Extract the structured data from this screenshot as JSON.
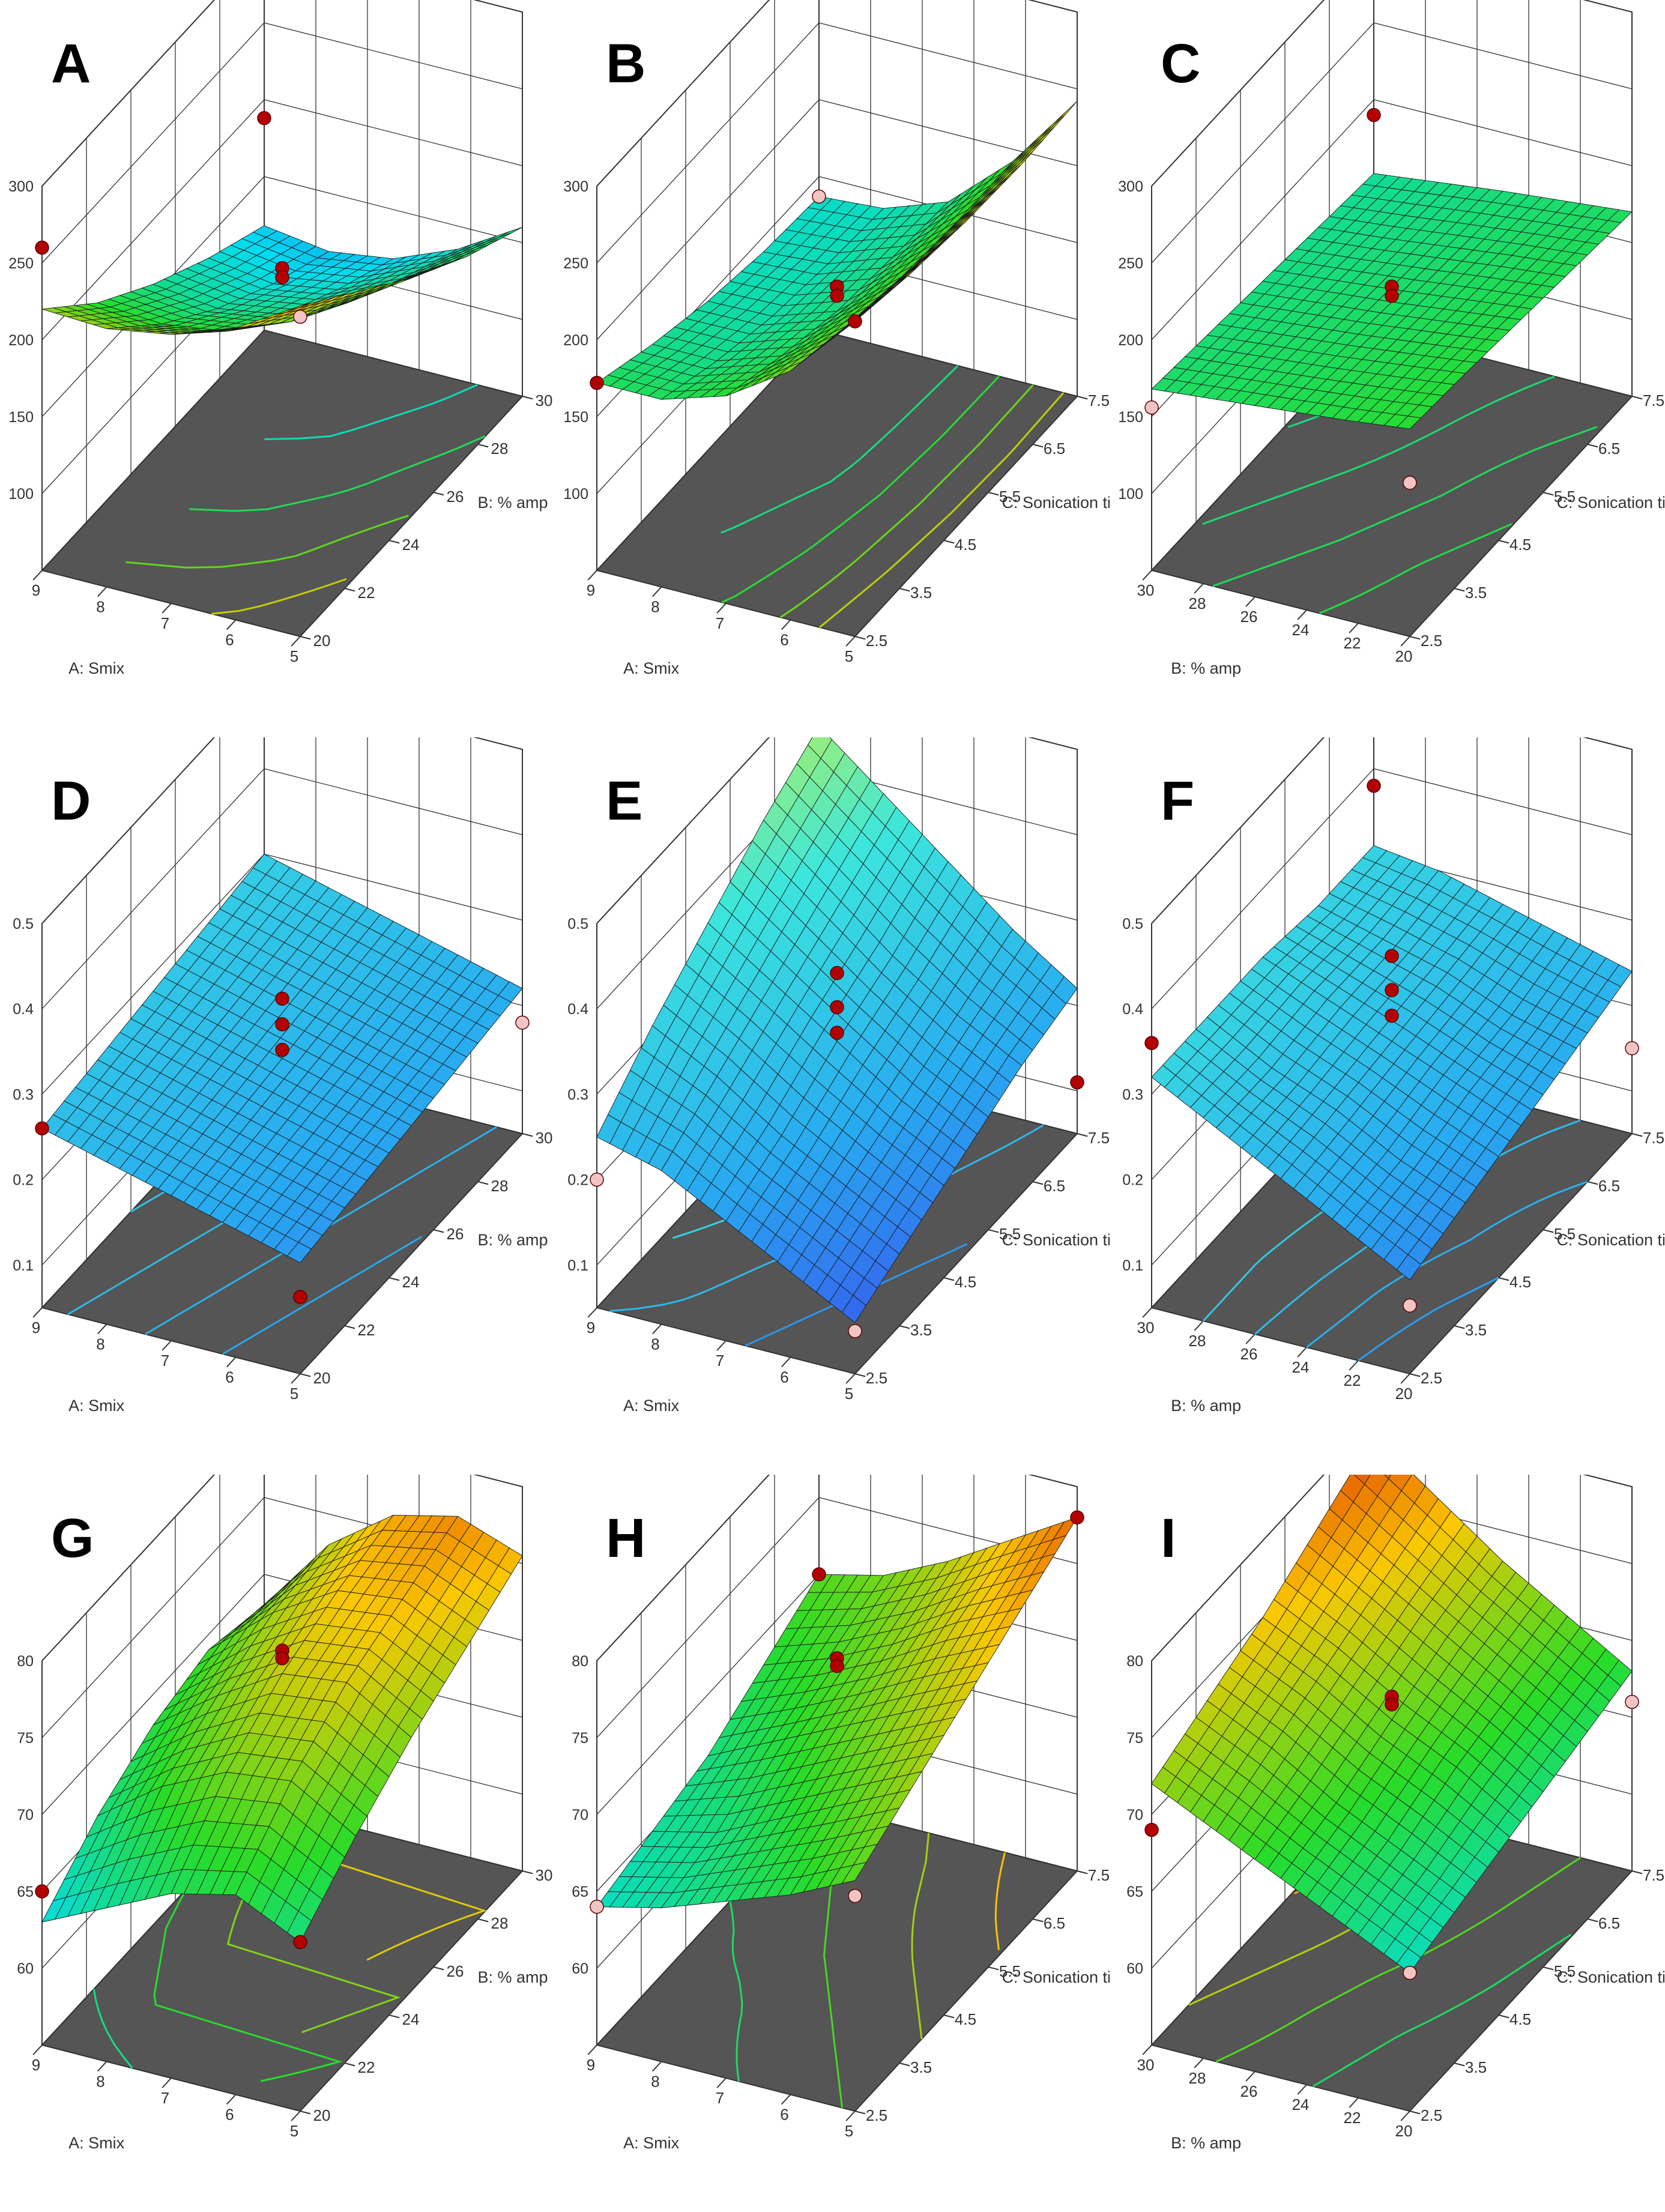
{
  "chart_data": [
    {
      "letter": "A",
      "type": "surface3d",
      "xlabel": "A: Smix",
      "xticks": [
        "5",
        "6",
        "7",
        "8",
        "9"
      ],
      "xrange": [
        5,
        9
      ],
      "ylabel": "B: % amp",
      "yticks": [
        "20",
        "22",
        "24",
        "26",
        "28",
        "30"
      ],
      "yrange": [
        20,
        30
      ],
      "zticks": [
        "100",
        "150",
        "200",
        "250",
        "300"
      ],
      "zrange": [
        50,
        300
      ],
      "grid_values": [
        [
          265,
          240,
          225,
          218,
          220
        ],
        [
          235,
          205,
          188,
          182,
          185
        ],
        [
          205,
          178,
          160,
          153,
          158
        ],
        [
          180,
          155,
          137,
          130,
          136
        ],
        [
          160,
          135,
          118,
          112,
          118
        ]
      ],
      "colorscale": "bluegreenred",
      "design_points": [
        {
          "x": 5,
          "y": 20,
          "z": 258,
          "above": false
        },
        {
          "x": 9,
          "y": 30,
          "z": 188,
          "above": true
        },
        {
          "x": 9,
          "y": 20,
          "z": 260,
          "above": true
        },
        {
          "x": 7,
          "y": 25,
          "z": 190,
          "above": true
        },
        {
          "x": 7,
          "y": 25,
          "z": 184,
          "above": true
        }
      ]
    },
    {
      "letter": "B",
      "type": "surface3d",
      "xlabel": "A: Smix",
      "xticks": [
        "5",
        "6",
        "7",
        "8",
        "9"
      ],
      "xrange": [
        5,
        9
      ],
      "ylabel": "C: Sonication time",
      "yticks": [
        "2.5",
        "3.5",
        "4.5",
        "5.5",
        "6.5",
        "7.5"
      ],
      "yrange": [
        2.5,
        7.5
      ],
      "zticks": [
        "100",
        "150",
        "200",
        "250",
        "300"
      ],
      "zrange": [
        50,
        300
      ],
      "grid_values": [
        [
          255,
          212,
          185,
          172,
          172
        ],
        [
          247,
          202,
          172,
          158,
          158
        ],
        [
          242,
          195,
          162,
          148,
          147
        ],
        [
          240,
          192,
          158,
          143,
          140
        ],
        [
          242,
          192,
          155,
          140,
          137
        ]
      ],
      "colorscale": "bluegreenred",
      "design_points": [
        {
          "x": 5,
          "y": 2.5,
          "z": 255,
          "above": true
        },
        {
          "x": 9,
          "y": 7.5,
          "z": 137,
          "above": false
        },
        {
          "x": 9,
          "y": 2.5,
          "z": 172,
          "above": true
        },
        {
          "x": 7,
          "y": 5,
          "z": 178,
          "above": true
        },
        {
          "x": 7,
          "y": 5,
          "z": 172,
          "above": true
        }
      ]
    },
    {
      "letter": "C",
      "type": "surface3d",
      "xlabel": "B: % amp",
      "xticks": [
        "20",
        "22",
        "24",
        "26",
        "28",
        "30"
      ],
      "xrange": [
        20,
        30
      ],
      "ylabel": "C: Sonication time",
      "yticks": [
        "2.5",
        "3.5",
        "4.5",
        "5.5",
        "6.5",
        "7.5"
      ],
      "yrange": [
        2.5,
        7.5
      ],
      "zticks": [
        "100",
        "150",
        "200",
        "250",
        "300"
      ],
      "zrange": [
        50,
        300
      ],
      "grid_values": [
        [
          185,
          180,
          176,
          172,
          168
        ],
        [
          182,
          177,
          172,
          168,
          164
        ],
        [
          178,
          173,
          168,
          164,
          160
        ],
        [
          174,
          170,
          165,
          160,
          156
        ],
        [
          170,
          166,
          162,
          157,
          152
        ]
      ],
      "colorscale": "bluegreenred",
      "design_points": [
        {
          "x": 20,
          "y": 2.5,
          "z": 150,
          "above": false
        },
        {
          "x": 30,
          "y": 7.5,
          "z": 190,
          "above": true
        },
        {
          "x": 30,
          "y": 2.5,
          "z": 156,
          "above": false
        },
        {
          "x": 25,
          "y": 5,
          "z": 178,
          "above": true
        },
        {
          "x": 25,
          "y": 5,
          "z": 172,
          "above": true
        }
      ]
    },
    {
      "letter": "D",
      "type": "surface3d",
      "xlabel": "A: Smix",
      "xticks": [
        "5",
        "6",
        "7",
        "8",
        "9"
      ],
      "xrange": [
        5,
        9
      ],
      "ylabel": "B: % amp",
      "yticks": [
        "20",
        "22",
        "24",
        "26",
        "28",
        "30"
      ],
      "yrange": [
        20,
        30
      ],
      "zticks": [
        "0.1",
        "0.2",
        "0.3",
        "0.4",
        "0.5"
      ],
      "zrange": [
        0.05,
        0.5
      ],
      "grid_values": [
        [
          0.18,
          0.2,
          0.22,
          0.24,
          0.26
        ],
        [
          0.19,
          0.21,
          0.23,
          0.25,
          0.27
        ],
        [
          0.2,
          0.22,
          0.24,
          0.26,
          0.28
        ],
        [
          0.21,
          0.23,
          0.25,
          0.27,
          0.29
        ],
        [
          0.22,
          0.24,
          0.26,
          0.28,
          0.3
        ]
      ],
      "colorscale": "bluegreen",
      "design_points": [
        {
          "x": 5,
          "y": 30,
          "z": 0.18,
          "above": false
        },
        {
          "x": 9,
          "y": 20,
          "z": 0.26,
          "above": true
        },
        {
          "x": 5,
          "y": 20,
          "z": 0.14,
          "above": true
        },
        {
          "x": 7,
          "y": 25,
          "z": 0.31,
          "above": true
        },
        {
          "x": 7,
          "y": 25,
          "z": 0.28,
          "above": true
        },
        {
          "x": 7,
          "y": 25,
          "z": 0.25,
          "above": true
        }
      ]
    },
    {
      "letter": "E",
      "type": "surface3d",
      "xlabel": "A: Smix",
      "xticks": [
        "5",
        "6",
        "7",
        "8",
        "9"
      ],
      "xrange": [
        5,
        9
      ],
      "ylabel": "C: Sonication time",
      "yticks": [
        "2.5",
        "3.5",
        "4.5",
        "5.5",
        "6.5",
        "7.5"
      ],
      "yrange": [
        2.5,
        7.5
      ],
      "zticks": [
        "0.1",
        "0.2",
        "0.3",
        "0.4",
        "0.5"
      ],
      "zrange": [
        0.05,
        0.5
      ],
      "grid_values": [
        [
          0.11,
          0.15,
          0.19,
          0.23,
          0.25
        ],
        [
          0.14,
          0.18,
          0.22,
          0.27,
          0.31
        ],
        [
          0.17,
          0.21,
          0.26,
          0.31,
          0.36
        ],
        [
          0.2,
          0.24,
          0.29,
          0.35,
          0.41
        ],
        [
          0.22,
          0.27,
          0.33,
          0.39,
          0.45
        ]
      ],
      "colorscale": "bluegreen",
      "design_points": [
        {
          "x": 5,
          "y": 7.5,
          "z": 0.11,
          "above": true
        },
        {
          "x": 9,
          "y": 2.5,
          "z": 0.2,
          "above": false
        },
        {
          "x": 9,
          "y": 7.5,
          "z": 0.48,
          "above": true
        },
        {
          "x": 5,
          "y": 2.5,
          "z": 0.1,
          "above": false
        },
        {
          "x": 7,
          "y": 5,
          "z": 0.34,
          "above": true
        },
        {
          "x": 7,
          "y": 5,
          "z": 0.3,
          "above": true
        },
        {
          "x": 7,
          "y": 5,
          "z": 0.27,
          "above": true
        }
      ]
    },
    {
      "letter": "F",
      "type": "surface3d",
      "xlabel": "B: % amp",
      "xticks": [
        "20",
        "22",
        "24",
        "26",
        "28",
        "30"
      ],
      "xrange": [
        20,
        30
      ],
      "ylabel": "C: Sonication time",
      "yticks": [
        "2.5",
        "3.5",
        "4.5",
        "5.5",
        "6.5",
        "7.5"
      ],
      "yrange": [
        2.5,
        7.5
      ],
      "zticks": [
        "0.1",
        "0.2",
        "0.3",
        "0.4",
        "0.5"
      ],
      "zrange": [
        0.05,
        0.5
      ],
      "grid_values": [
        [
          0.16,
          0.2,
          0.24,
          0.28,
          0.32
        ],
        [
          0.18,
          0.21,
          0.25,
          0.28,
          0.32
        ],
        [
          0.2,
          0.23,
          0.26,
          0.29,
          0.32
        ],
        [
          0.22,
          0.24,
          0.27,
          0.29,
          0.31
        ],
        [
          0.24,
          0.26,
          0.28,
          0.3,
          0.31
        ]
      ],
      "colorscale": "bluegreen",
      "design_points": [
        {
          "x": 20,
          "y": 7.5,
          "z": 0.15,
          "above": false
        },
        {
          "x": 30,
          "y": 2.5,
          "z": 0.36,
          "above": true
        },
        {
          "x": 20,
          "y": 2.5,
          "z": 0.13,
          "above": false
        },
        {
          "x": 30,
          "y": 7.5,
          "z": 0.38,
          "above": true
        },
        {
          "x": 25,
          "y": 5,
          "z": 0.36,
          "above": true
        },
        {
          "x": 25,
          "y": 5,
          "z": 0.32,
          "above": true
        },
        {
          "x": 25,
          "y": 5,
          "z": 0.29,
          "above": true
        }
      ]
    },
    {
      "letter": "G",
      "type": "surface3d",
      "xlabel": "A: Smix",
      "xticks": [
        "5",
        "6",
        "7",
        "8",
        "9"
      ],
      "xrange": [
        5,
        9
      ],
      "ylabel": "B: % amp",
      "yticks": [
        "20",
        "22",
        "24",
        "26",
        "28",
        "30"
      ],
      "yrange": [
        20,
        30
      ],
      "zticks": [
        "60",
        "65",
        "70",
        "75",
        "80"
      ],
      "zrange": [
        55,
        80
      ],
      "grid_values": [
        [
          66,
          68,
          67,
          65,
          63
        ],
        [
          69,
          71.5,
          71,
          69,
          66
        ],
        [
          71.5,
          74,
          73.5,
          71,
          68
        ],
        [
          73.5,
          75.5,
          75,
          72.5,
          69
        ],
        [
          75.5,
          77,
          76,
          73,
          68
        ]
      ],
      "colorscale": "bluegreenred",
      "design_points": [
        {
          "x": 5,
          "y": 20,
          "z": 66,
          "above": true
        },
        {
          "x": 9,
          "y": 20,
          "z": 65,
          "above": true
        },
        {
          "x": 7,
          "y": 25,
          "z": 75,
          "above": true
        },
        {
          "x": 7,
          "y": 25,
          "z": 74.5,
          "above": true
        }
      ]
    },
    {
      "letter": "H",
      "type": "surface3d",
      "xlabel": "A: Smix",
      "xticks": [
        "5",
        "6",
        "7",
        "8",
        "9"
      ],
      "xrange": [
        5,
        9
      ],
      "ylabel": "C: Sonication time",
      "yticks": [
        "2.5",
        "3.5",
        "4.5",
        "5.5",
        "6.5",
        "7.5"
      ],
      "yrange": [
        2.5,
        7.5
      ],
      "zticks": [
        "60",
        "65",
        "70",
        "75",
        "80"
      ],
      "zrange": [
        55,
        80
      ],
      "grid_values": [
        [
          70,
          68,
          66.5,
          65,
          64
        ],
        [
          72,
          70,
          68,
          66,
          65
        ],
        [
          74,
          72,
          70,
          68,
          66
        ],
        [
          76,
          74,
          71.5,
          69.5,
          68
        ],
        [
          78,
          75.5,
          73,
          71,
          70
        ]
      ],
      "colorscale": "bluegreenred",
      "design_points": [
        {
          "x": 5,
          "y": 7.5,
          "z": 78,
          "above": true
        },
        {
          "x": 5,
          "y": 2.5,
          "z": 69,
          "above": false
        },
        {
          "x": 9,
          "y": 7.5,
          "z": 70,
          "above": true
        },
        {
          "x": 9,
          "y": 2.5,
          "z": 64,
          "above": false
        },
        {
          "x": 7,
          "y": 5,
          "z": 74.5,
          "above": true
        },
        {
          "x": 7,
          "y": 5,
          "z": 74,
          "above": true
        }
      ]
    },
    {
      "letter": "I",
      "type": "surface3d",
      "xlabel": "B: % amp",
      "xticks": [
        "20",
        "22",
        "24",
        "26",
        "28",
        "30"
      ],
      "xrange": [
        20,
        30
      ],
      "ylabel": "C: Sonication time",
      "yticks": [
        "2.5",
        "3.5",
        "4.5",
        "5.5",
        "6.5",
        "7.5"
      ],
      "yrange": [
        2.5,
        7.5
      ],
      "zticks": [
        "60",
        "65",
        "70",
        "75",
        "80"
      ],
      "zrange": [
        55,
        80
      ],
      "grid_values": [
        [
          64,
          66,
          68,
          70,
          72
        ],
        [
          65,
          67,
          69,
          71.5,
          73.5
        ],
        [
          66,
          68.5,
          70.5,
          73,
          75
        ],
        [
          67,
          69.5,
          72,
          74.5,
          77
        ],
        [
          68,
          70.5,
          73,
          76,
          79
        ]
      ],
      "colorscale": "bluegreenred",
      "design_points": [
        {
          "x": 20,
          "y": 7.5,
          "z": 66,
          "above": false
        },
        {
          "x": 30,
          "y": 7.5,
          "z": 80,
          "above": true
        },
        {
          "x": 30,
          "y": 2.5,
          "z": 69,
          "above": true
        },
        {
          "x": 20,
          "y": 2.5,
          "z": 64,
          "above": false
        },
        {
          "x": 25,
          "y": 5,
          "z": 72,
          "above": true
        },
        {
          "x": 25,
          "y": 5,
          "z": 71.5,
          "above": true
        }
      ]
    }
  ],
  "colors": {
    "floor": "#555555",
    "frame": "#333333",
    "design_point_above": "#b30000",
    "design_point_below": "#f2c4c4"
  }
}
